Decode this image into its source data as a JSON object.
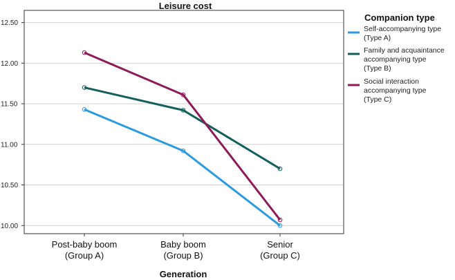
{
  "chart_data": {
    "type": "line",
    "title": "Leisure cost",
    "xlabel": "Generation",
    "ylabel": "",
    "categories": [
      [
        "Post-baby boom",
        "(Group A)"
      ],
      [
        "Baby boom",
        "(Group B)"
      ],
      [
        "Senior",
        "(Group C)"
      ]
    ],
    "ylim": [
      9.9,
      12.65
    ],
    "yticks": [
      "10.00",
      "10.50",
      "11.00",
      "11.50",
      "12.00",
      "12.50"
    ],
    "grid": "horizontal",
    "legend": {
      "title": "Companion type",
      "position": "right"
    },
    "series": [
      {
        "name": [
          "Self-accompanying type",
          "(Type A)"
        ],
        "color": "#2a9be0",
        "values": [
          11.43,
          10.92,
          10.0
        ]
      },
      {
        "name": [
          "Family and acquaintance",
          "accompanying type",
          "(Type B)"
        ],
        "color": "#135f5c",
        "values": [
          11.7,
          11.42,
          10.7
        ]
      },
      {
        "name": [
          "Social interaction",
          "accompanying type",
          "(Type C)"
        ],
        "color": "#8e1a57",
        "values": [
          12.13,
          11.61,
          10.07
        ]
      }
    ]
  }
}
